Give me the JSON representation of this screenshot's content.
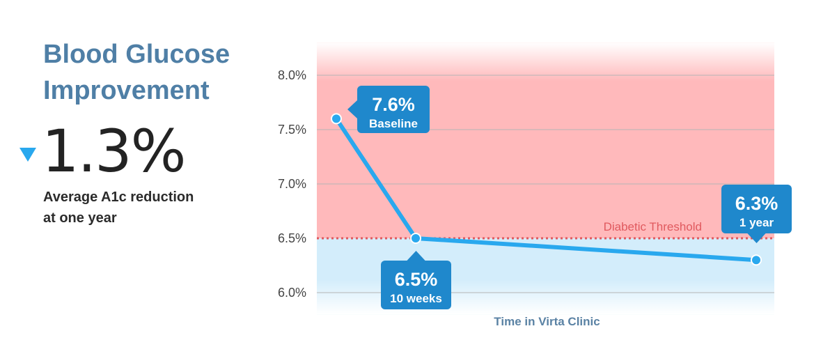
{
  "headline": {
    "title_line1": "Blood Glucose",
    "title_line2": "Improvement",
    "arrow_icon": "triangle-down-icon",
    "big_value": "1.3%",
    "caption_line1": "Average A1c reduction",
    "caption_line2": "at one year"
  },
  "colors": {
    "title": "#4f7fa6",
    "line": "#29a8ee",
    "callout": "#1f88cc",
    "diabetic_zone": "#ffb9bb",
    "normal_zone": "#d3edfb",
    "threshold": "#e0595e"
  },
  "chart_data": {
    "type": "line",
    "x": [
      "Baseline",
      "10 weeks",
      "1 year"
    ],
    "series": [
      {
        "values": [
          7.6,
          6.5,
          6.3
        ]
      }
    ],
    "callouts": [
      {
        "value": "7.6%",
        "label": "Baseline"
      },
      {
        "value": "6.5%",
        "label": "10 weeks"
      },
      {
        "value": "6.3%",
        "label": "1 year"
      }
    ],
    "yticks": [
      6.0,
      6.5,
      7.0,
      7.5,
      8.0
    ],
    "ytick_labels": [
      "6.0%",
      "6.5%",
      "7.0%",
      "7.5%",
      "8.0%"
    ],
    "ylim": [
      5.8,
      8.3
    ],
    "threshold": {
      "value": 6.5,
      "label": "Diabetic Threshold"
    },
    "xlabel": "Time in Virta Clinic",
    "ylabel": "",
    "grid": true
  }
}
